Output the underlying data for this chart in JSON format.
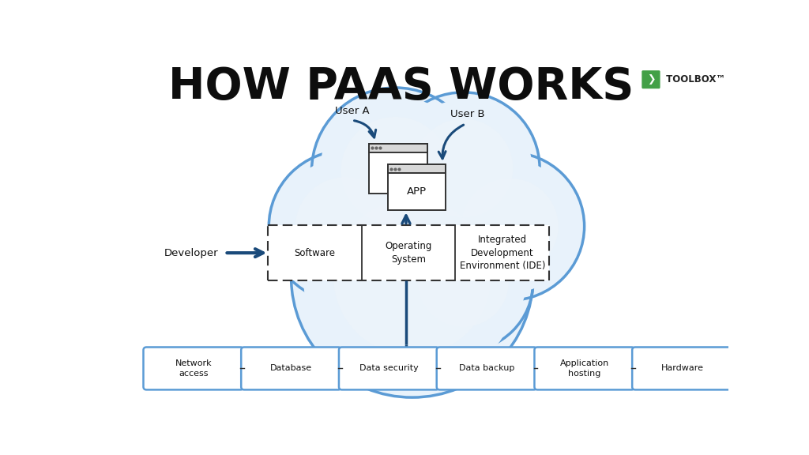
{
  "title": "HOW PAAS WORKS",
  "title_fontsize": 40,
  "bg_color": "#ffffff",
  "cloud_fill": "#e8f2fb",
  "cloud_edge": "#5b9bd5",
  "cloud_edge_width": 2.5,
  "cloud_inner_fill": "#f5f8fc",
  "box_fill": "#ffffff",
  "box_edge": "#5b9bd5",
  "box_edge_width": 1.8,
  "dash_edge": "#333333",
  "arrow_color": "#1a4a7a",
  "arrow_lw": 2.5,
  "bottom_boxes": [
    "Network\naccess",
    "Database",
    "Data security",
    "Data backup",
    "Application\nhosting",
    "Hardware"
  ],
  "middle_boxes": [
    "Software",
    "Operating\nSystem",
    "Integrated\nDevelopment\nEnvironment (IDE)"
  ],
  "user_a": "User A",
  "user_b": "User B",
  "developer": "Developer",
  "app_label": "APP",
  "toolbox_green": "#43a047",
  "toolbox_text": " TOOLBOX™"
}
